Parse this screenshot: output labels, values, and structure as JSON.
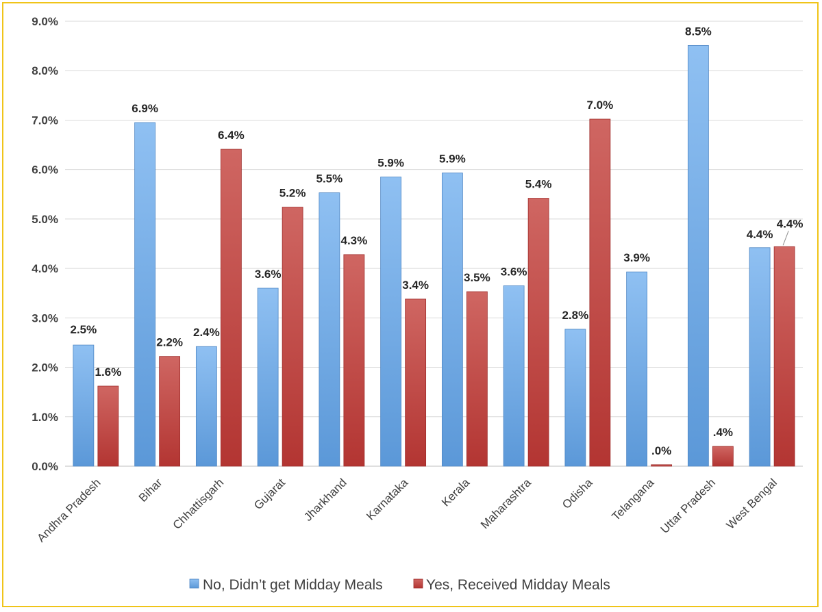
{
  "chart_data": {
    "type": "bar",
    "categories": [
      "Andhra Pradesh",
      "Bihar",
      "Chhattisgarh",
      "Gujarat",
      "Jharkhand",
      "Karnataka",
      "Kerala",
      "Maharashtra",
      "Odisha",
      "Telangana",
      "Uttar Pradesh",
      "West Bengal"
    ],
    "series": [
      {
        "name": "No, Didn’t get Midday Meals",
        "color": "#6aa6e3",
        "values": [
          2.45,
          6.95,
          2.42,
          3.6,
          5.53,
          5.85,
          5.93,
          3.65,
          2.77,
          3.93,
          8.51,
          4.42
        ],
        "labels": [
          "2.5%",
          "6.9%",
          "2.4%",
          "3.6%",
          "5.5%",
          "5.9%",
          "5.9%",
          "3.6%",
          "2.8%",
          "3.9%",
          "8.5%",
          "4.4%"
        ]
      },
      {
        "name": "Yes, Received Midday Meals",
        "color": "#c0413e",
        "values": [
          1.62,
          2.22,
          6.41,
          5.24,
          4.28,
          3.38,
          3.53,
          5.42,
          7.02,
          0.03,
          0.4,
          4.44
        ],
        "labels": [
          "1.6%",
          "2.2%",
          "6.4%",
          "5.2%",
          "4.3%",
          "3.4%",
          "3.5%",
          "5.4%",
          "7.0%",
          ".0%",
          ".4%",
          "4.4%"
        ]
      }
    ],
    "title": "",
    "xlabel": "",
    "ylabel": "",
    "ylim": [
      0,
      9
    ],
    "yticks": [
      "0.0%",
      "1.0%",
      "2.0%",
      "3.0%",
      "4.0%",
      "5.0%",
      "6.0%",
      "7.0%",
      "8.0%",
      "9.0%"
    ],
    "grid": true,
    "legend_position": "bottom"
  }
}
